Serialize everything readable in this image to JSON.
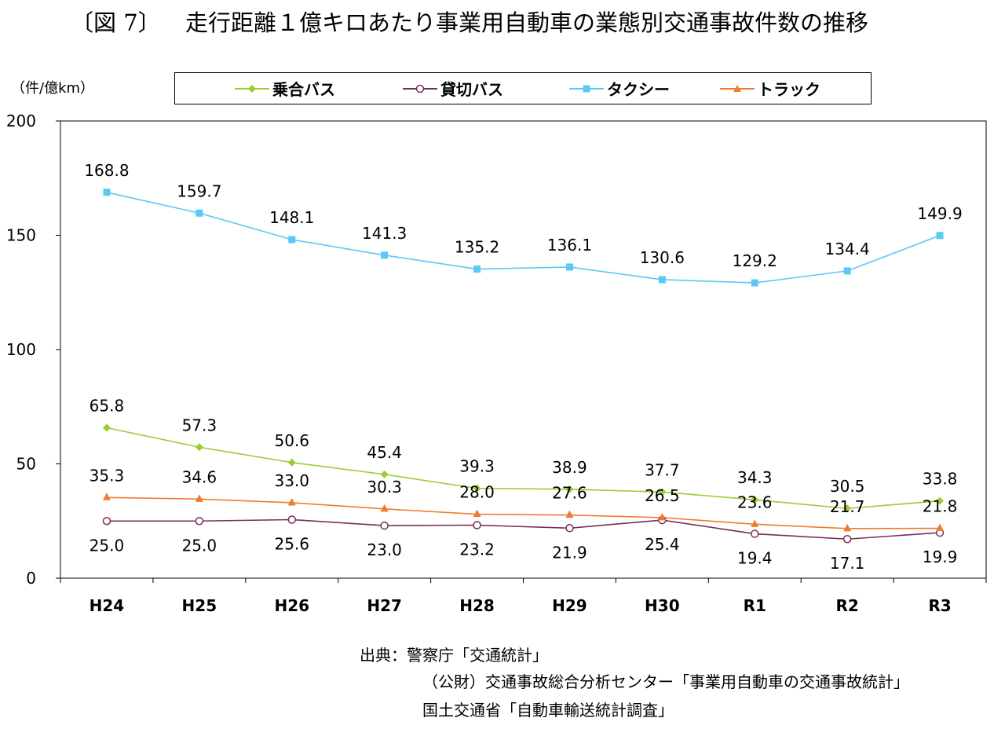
{
  "figure": {
    "number": "〔図 7〕",
    "title": "走行距離１億キロあたり事業用自動車の業態別交通事故件数の推移"
  },
  "chart_data": {
    "type": "line",
    "title": "走行距離１億キロあたり事業用自動車の業態別交通事故件数の推移",
    "ylabel": "（件/億km）",
    "xlabel": "",
    "ylim": [
      0,
      200
    ],
    "yticks": [
      0,
      50,
      100,
      150,
      200
    ],
    "categories": [
      "H24",
      "H25",
      "H26",
      "H27",
      "H28",
      "H29",
      "H30",
      "R1",
      "R2",
      "R3"
    ],
    "legend_position": "top",
    "series": [
      {
        "name": "乗合バス",
        "color": "#9ACD32",
        "marker": "diamond",
        "values": [
          65.8,
          57.3,
          50.6,
          45.4,
          39.3,
          38.9,
          37.7,
          34.3,
          30.5,
          33.8
        ],
        "labels": [
          "65.8",
          "57.3",
          "50.6",
          "45.4",
          "39.3",
          "38.9",
          "37.7",
          "34.3",
          "30.5",
          "33.8"
        ]
      },
      {
        "name": "貸切バス",
        "color": "#7B2C5A",
        "marker": "circle",
        "values": [
          25.0,
          25.0,
          25.6,
          23.0,
          23.2,
          21.9,
          25.4,
          19.4,
          17.1,
          19.9
        ],
        "labels": [
          "25.0",
          "25.0",
          "25.6",
          "23.0",
          "23.2",
          "21.9",
          "25.4",
          "19.4",
          "17.1",
          "19.9"
        ]
      },
      {
        "name": "タクシー",
        "color": "#5BC8F5",
        "marker": "square",
        "values": [
          168.8,
          159.7,
          148.1,
          141.3,
          135.2,
          136.1,
          130.6,
          129.2,
          134.4,
          149.9
        ],
        "labels": [
          "168.8",
          "159.7",
          "148.1",
          "141.3",
          "135.2",
          "136.1",
          "130.6",
          "129.2",
          "134.4",
          "149.9"
        ]
      },
      {
        "name": "トラック",
        "color": "#F07A2E",
        "marker": "triangle",
        "values": [
          35.3,
          34.6,
          33.0,
          30.3,
          28.0,
          27.6,
          26.5,
          23.6,
          21.7,
          21.8
        ],
        "labels": [
          "35.3",
          "34.6",
          "33.0",
          "30.3",
          "28.0",
          "27.6",
          "26.5",
          "23.6",
          "21.7",
          "21.8"
        ]
      }
    ]
  },
  "source": {
    "line1": "出典：警察庁「交通統計」",
    "line2": "（公財）交通事故総合分析センター「事業用自動車の交通事故統計」",
    "line3": "国土交通省「自動車輸送統計調査」"
  }
}
